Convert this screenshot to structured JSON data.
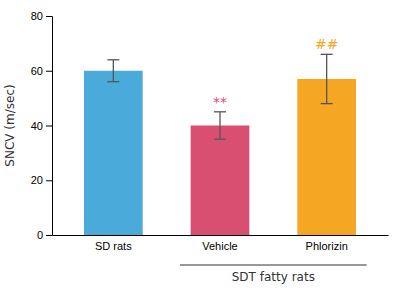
{
  "chart_data": {
    "type": "bar",
    "categories": [
      "SD rats",
      "Vehicle",
      "Phlorizin"
    ],
    "values": [
      60.0,
      40.0,
      57.0
    ],
    "errors": [
      4.0,
      5.0,
      9.0
    ],
    "colors": [
      "#4AABDB",
      "#D94F72",
      "#F5A623"
    ],
    "ylabel": "SNCV (m/sec)",
    "ylim": [
      0,
      80
    ],
    "yticks": [
      0,
      20,
      40,
      60,
      80
    ],
    "annotations": [
      {
        "text": "**",
        "category": "Vehicle",
        "color": "#D94F72"
      },
      {
        "text": "##",
        "category": "Phlorizin",
        "color": "#F5A623"
      }
    ],
    "group_label": {
      "text": "SDT fatty rats",
      "from": "Vehicle",
      "to": "Phlorizin"
    }
  }
}
